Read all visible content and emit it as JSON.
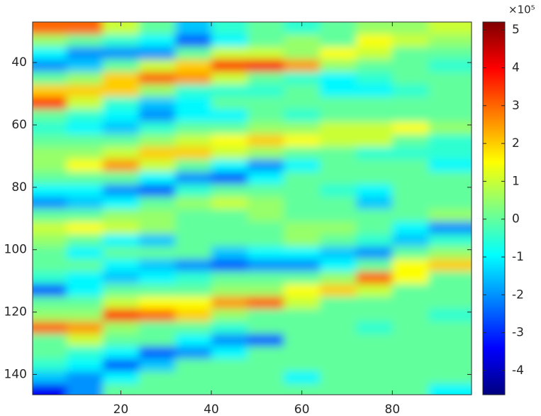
{
  "chart_data": {
    "type": "heatmap",
    "colormap": "jet",
    "x": [
      4,
      12,
      20,
      28,
      36,
      44,
      52,
      60,
      68,
      76,
      84,
      92
    ],
    "y": [
      29,
      33,
      37,
      41,
      45,
      49,
      53,
      57,
      61,
      65,
      69,
      73,
      77,
      81,
      85,
      89,
      93,
      97,
      101,
      105,
      109,
      113,
      117,
      121,
      125,
      129,
      133,
      137,
      141,
      145
    ],
    "z": [
      [
        3,
        3,
        1,
        0,
        -1.5,
        -0.5,
        0,
        -0.5,
        0,
        0.5,
        0.5,
        1
      ],
      [
        0.5,
        0,
        -0.5,
        -1,
        -2.5,
        -1,
        0,
        0.5,
        0,
        1.5,
        1,
        0.5
      ],
      [
        -1,
        -2,
        -2,
        -2,
        0,
        1,
        1,
        0.5,
        1.5,
        1,
        0,
        0
      ],
      [
        -2,
        -1.5,
        0,
        1,
        2,
        3.5,
        4,
        2.5,
        0.5,
        0,
        0,
        -0.5
      ],
      [
        0,
        0.5,
        2,
        3,
        2.5,
        1,
        0,
        -0.5,
        -1,
        -0.5,
        0,
        0
      ],
      [
        2,
        2,
        2,
        0.5,
        -0.5,
        -0.5,
        -0.5,
        0,
        -1,
        -1,
        -0.5,
        0
      ],
      [
        3.5,
        1,
        -0.5,
        -1.5,
        -1,
        0,
        0,
        0,
        0,
        0,
        0,
        0
      ],
      [
        0,
        -0.5,
        -1,
        -2,
        -1,
        -1,
        0,
        -0.5,
        0,
        0,
        0,
        0
      ],
      [
        -0.5,
        -1,
        -1.5,
        -0.5,
        0,
        0,
        0.5,
        0.5,
        1,
        1,
        1.5,
        0.5
      ],
      [
        0,
        0,
        0,
        0.5,
        1,
        1.5,
        2,
        1.5,
        1,
        1,
        0,
        -0.5
      ],
      [
        0.5,
        0.5,
        1,
        2,
        2,
        1,
        0.5,
        0,
        0,
        -0.5,
        -0.5,
        -0.5
      ],
      [
        0.5,
        1.5,
        2.5,
        1,
        0,
        -1,
        -2,
        -1,
        0,
        0,
        0,
        -1
      ],
      [
        0,
        0,
        0,
        -1,
        -2,
        -2.5,
        -1,
        0,
        0,
        0,
        0,
        0
      ],
      [
        -1,
        -1,
        -2,
        -2.5,
        -0.5,
        0,
        0,
        0,
        -0.5,
        -1,
        0,
        0
      ],
      [
        -2,
        -1.5,
        -1,
        0,
        0.5,
        1,
        0.5,
        0,
        0,
        -1.5,
        0,
        0
      ],
      [
        0,
        0,
        0.5,
        0.5,
        0,
        0,
        0.5,
        0,
        0,
        0,
        0,
        0.5
      ],
      [
        1,
        1.5,
        1,
        0.5,
        0,
        0,
        0,
        0.5,
        0.5,
        0,
        -1,
        -2
      ],
      [
        0.5,
        0,
        -1,
        -1.5,
        0,
        0,
        0,
        0.5,
        0,
        -0.5,
        -1.5,
        -0.5
      ],
      [
        0,
        -1,
        0,
        0,
        0,
        -1.5,
        -1,
        -1,
        -1.5,
        -2,
        0,
        0.5
      ],
      [
        0,
        0,
        -1,
        -1.5,
        -2,
        -2.5,
        -2,
        -2,
        -1,
        0,
        1.5,
        2
      ],
      [
        -0.5,
        -1,
        -1.5,
        -1,
        -0.5,
        0,
        0,
        0,
        0.5,
        3,
        1.5,
        0
      ],
      [
        -2.5,
        -1,
        0,
        0,
        0,
        0.5,
        0.5,
        1.5,
        2,
        1,
        0,
        0
      ],
      [
        0,
        0,
        1,
        1.5,
        1.5,
        2.5,
        3,
        1,
        0,
        0,
        0,
        0
      ],
      [
        0.5,
        0.5,
        3.5,
        3,
        2,
        0.5,
        0,
        0,
        0,
        0,
        0,
        -0.5
      ],
      [
        3,
        2.5,
        0.5,
        0,
        0,
        -0.5,
        0,
        0,
        0,
        -0.5,
        0,
        0
      ],
      [
        0,
        1,
        0,
        0,
        -1,
        -2,
        -2.5,
        0,
        0,
        0,
        0,
        0
      ],
      [
        0,
        -0.5,
        -1,
        -2.5,
        -2,
        -1,
        0,
        0,
        0,
        0,
        0,
        0
      ],
      [
        -0.5,
        -1,
        -2.5,
        -1.5,
        0,
        0,
        0,
        0,
        0,
        0,
        0,
        0
      ],
      [
        -1.5,
        -2,
        -1,
        0,
        0,
        0,
        0,
        -1,
        0,
        0,
        0,
        0
      ],
      [
        -3.5,
        -2,
        0,
        0,
        0,
        0,
        0,
        0,
        0,
        0,
        0,
        -1
      ]
    ],
    "xlim": [
      0.5,
      97.5
    ],
    "ylim": [
      27,
      146.5
    ],
    "xticks": [
      20,
      40,
      60,
      80
    ],
    "yticks": [
      40,
      60,
      80,
      100,
      120,
      140
    ],
    "colorbar": {
      "clim": [
        -4.64,
        5.21
      ],
      "ticks": [
        -4,
        -3,
        -2,
        -1,
        0,
        1,
        2,
        3,
        4,
        5
      ],
      "multiplier": "×10⁵"
    }
  }
}
